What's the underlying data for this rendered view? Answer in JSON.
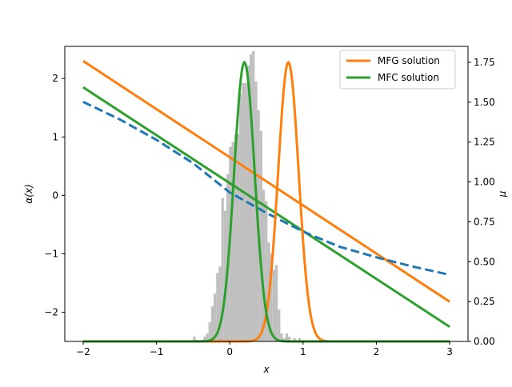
{
  "chart_data": {
    "type": "line",
    "title": "",
    "xlabel": "x",
    "ylabel_left": "α(x)",
    "ylabel_right": "μ",
    "xlim": [
      -2.25,
      3.25
    ],
    "ylim_left": [
      -2.5,
      2.55
    ],
    "ylim_right": [
      0.0,
      1.85
    ],
    "x_ticks": [
      -2,
      -1,
      0,
      1,
      2,
      3
    ],
    "x_tick_labels": [
      "−2",
      "−1",
      "0",
      "1",
      "2",
      "3"
    ],
    "y_left_ticks": [
      -2,
      -1,
      0,
      1,
      2
    ],
    "y_left_tick_labels": [
      "−2",
      "−1",
      "0",
      "1",
      "2"
    ],
    "y_right_ticks": [
      0.0,
      0.25,
      0.5,
      0.75,
      1.0,
      1.25,
      1.5,
      1.75
    ],
    "y_right_tick_labels": [
      "0.00",
      "0.25",
      "0.50",
      "0.75",
      "1.00",
      "1.25",
      "1.50",
      "1.75"
    ],
    "grid": false,
    "legend_position": "top-right",
    "colors": {
      "mfg": "#ff7f0e",
      "mfc": "#2ca02c",
      "dashed": "#1f77b4",
      "histogram": "#bfbfbf"
    },
    "series": [
      {
        "name": "MFG solution",
        "style": "solid",
        "color": "#ff7f0e",
        "axis": "left",
        "line": {
          "x": [
            -2.0,
            3.0
          ],
          "y": [
            2.3,
            -1.82
          ]
        },
        "density": {
          "axis": "right",
          "mean": 0.8,
          "sigma": 0.14,
          "peak": 1.75,
          "x_range": [
            -2.0,
            3.0
          ]
        }
      },
      {
        "name": "MFC solution",
        "style": "solid",
        "color": "#2ca02c",
        "axis": "left",
        "line": {
          "x": [
            -2.0,
            3.0
          ],
          "y": [
            1.85,
            -2.25
          ]
        },
        "density": {
          "axis": "right",
          "mean": 0.2,
          "sigma": 0.14,
          "peak": 1.75,
          "x_range": [
            -2.0,
            3.0
          ]
        }
      },
      {
        "style": "dashed",
        "color": "#1f77b4",
        "axis": "left",
        "points": {
          "x": [
            -2.0,
            -1.5,
            -1.0,
            -0.5,
            0.0,
            0.5,
            1.0,
            1.5,
            2.0,
            2.5,
            3.0
          ],
          "y": [
            1.6,
            1.3,
            0.95,
            0.55,
            0.05,
            -0.3,
            -0.62,
            -0.88,
            -1.06,
            -1.22,
            -1.36
          ]
        }
      }
    ],
    "histogram": {
      "axis": "right",
      "bin_width": 0.035,
      "x": [
        -0.5,
        -0.465,
        -0.43,
        -0.395,
        -0.36,
        -0.325,
        -0.29,
        -0.255,
        -0.22,
        -0.185,
        -0.15,
        -0.115,
        -0.08,
        -0.045,
        -0.01,
        0.025,
        0.06,
        0.095,
        0.13,
        0.165,
        0.2,
        0.235,
        0.27,
        0.305,
        0.34,
        0.375,
        0.41,
        0.445,
        0.48,
        0.515,
        0.55,
        0.585,
        0.62,
        0.655,
        0.69,
        0.725,
        0.76,
        0.795,
        0.83,
        0.865,
        0.9,
        0.935,
        0.97,
        1.005,
        1.04,
        1.075
      ],
      "values": [
        0.03,
        0.01,
        0.0,
        0.01,
        0.03,
        0.05,
        0.12,
        0.22,
        0.3,
        0.43,
        0.47,
        0.9,
        0.82,
        1.05,
        1.22,
        1.25,
        1.3,
        1.3,
        1.55,
        1.62,
        1.62,
        1.73,
        1.8,
        1.82,
        1.63,
        1.45,
        1.32,
        0.95,
        0.88,
        0.62,
        0.55,
        0.45,
        0.48,
        0.2,
        0.05,
        0.02,
        0.05,
        0.03,
        0.0,
        0.02,
        0.0,
        0.02,
        0.0,
        0.0,
        0.0,
        0.0
      ]
    }
  }
}
